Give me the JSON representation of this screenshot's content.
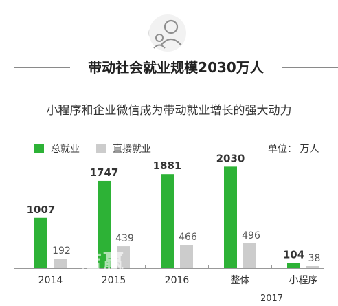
{
  "title": "带动社会就业规模2030万人",
  "subtitle": "小程序和企业微信成为带动就业增长的强大动力",
  "unit": "单位：  万人",
  "watermark": "店赢",
  "icons": {
    "hero": "people-icon"
  },
  "colors": {
    "green": "#2db236",
    "gray": "#cccccc",
    "axis": "#999999",
    "text": "#333333",
    "value_text_direct": "#555555"
  },
  "chart_data": {
    "type": "bar",
    "categories": [
      "2014",
      "2015",
      "2016",
      "整体",
      "小程序"
    ],
    "group_label": "2017",
    "series": [
      {
        "name": "总就业",
        "values": [
          1007,
          1747,
          1881,
          2030,
          104
        ]
      },
      {
        "name": "直接就业",
        "values": [
          192,
          439,
          466,
          496,
          38
        ]
      }
    ],
    "ylim": [
      0,
      2200
    ],
    "legend_position": "top-left"
  }
}
